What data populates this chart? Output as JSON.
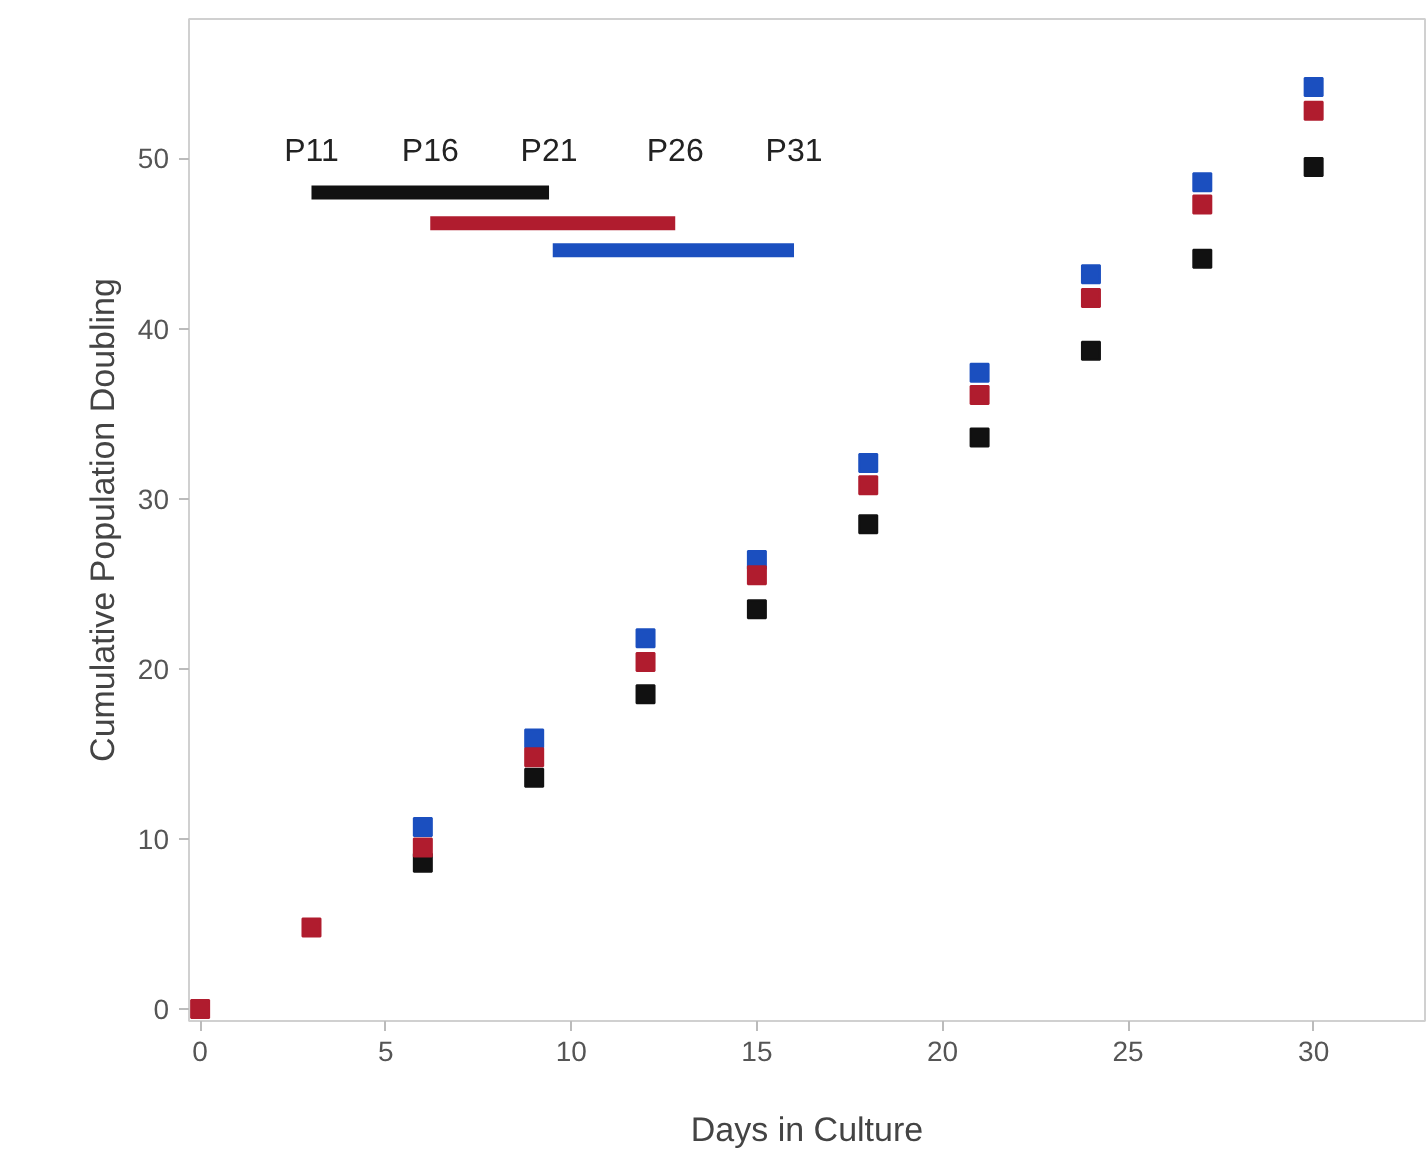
{
  "chart_data": {
    "type": "scatter",
    "xlabel": "Days in Culture",
    "ylabel": "Cumulative Population Doubling",
    "x": [
      0,
      3,
      6,
      9,
      12,
      15,
      18,
      21,
      24,
      27,
      30
    ],
    "xlim": [
      -0.3,
      33
    ],
    "xticks": [
      0,
      5,
      10,
      15,
      20,
      25,
      30
    ],
    "ylim": [
      -0.7,
      58.2
    ],
    "yticks": [
      0,
      10,
      20,
      30,
      40,
      50
    ],
    "marker": "square",
    "grid": false,
    "series": [
      {
        "color": "#111111",
        "values": [
          null,
          null,
          8.6,
          13.6,
          18.5,
          23.5,
          28.5,
          33.6,
          38.7,
          44.1,
          49.5
        ]
      },
      {
        "color": "#1b4fbf",
        "values": [
          null,
          null,
          10.7,
          15.9,
          21.8,
          26.4,
          32.1,
          37.4,
          43.2,
          48.6,
          54.2
        ]
      },
      {
        "color": "#b01c2e",
        "values": [
          0,
          4.8,
          9.5,
          14.8,
          20.4,
          25.5,
          30.8,
          36.1,
          41.8,
          47.3,
          52.8
        ]
      },
      {
        "type": "line",
        "marker": "none",
        "color": "#111111",
        "x": [
          3,
          9.4
        ],
        "values": [
          48,
          48
        ]
      },
      {
        "type": "line",
        "marker": "none",
        "color": "#b01c2e",
        "x": [
          6.2,
          12.8
        ],
        "values": [
          46.2,
          46.2
        ]
      },
      {
        "type": "line",
        "marker": "none",
        "color": "#1b4fbf",
        "x": [
          9.5,
          16.0
        ],
        "values": [
          44.6,
          44.6
        ]
      }
    ],
    "annotations": [
      "P11",
      "P16",
      "P21",
      "P26",
      "P31"
    ]
  }
}
